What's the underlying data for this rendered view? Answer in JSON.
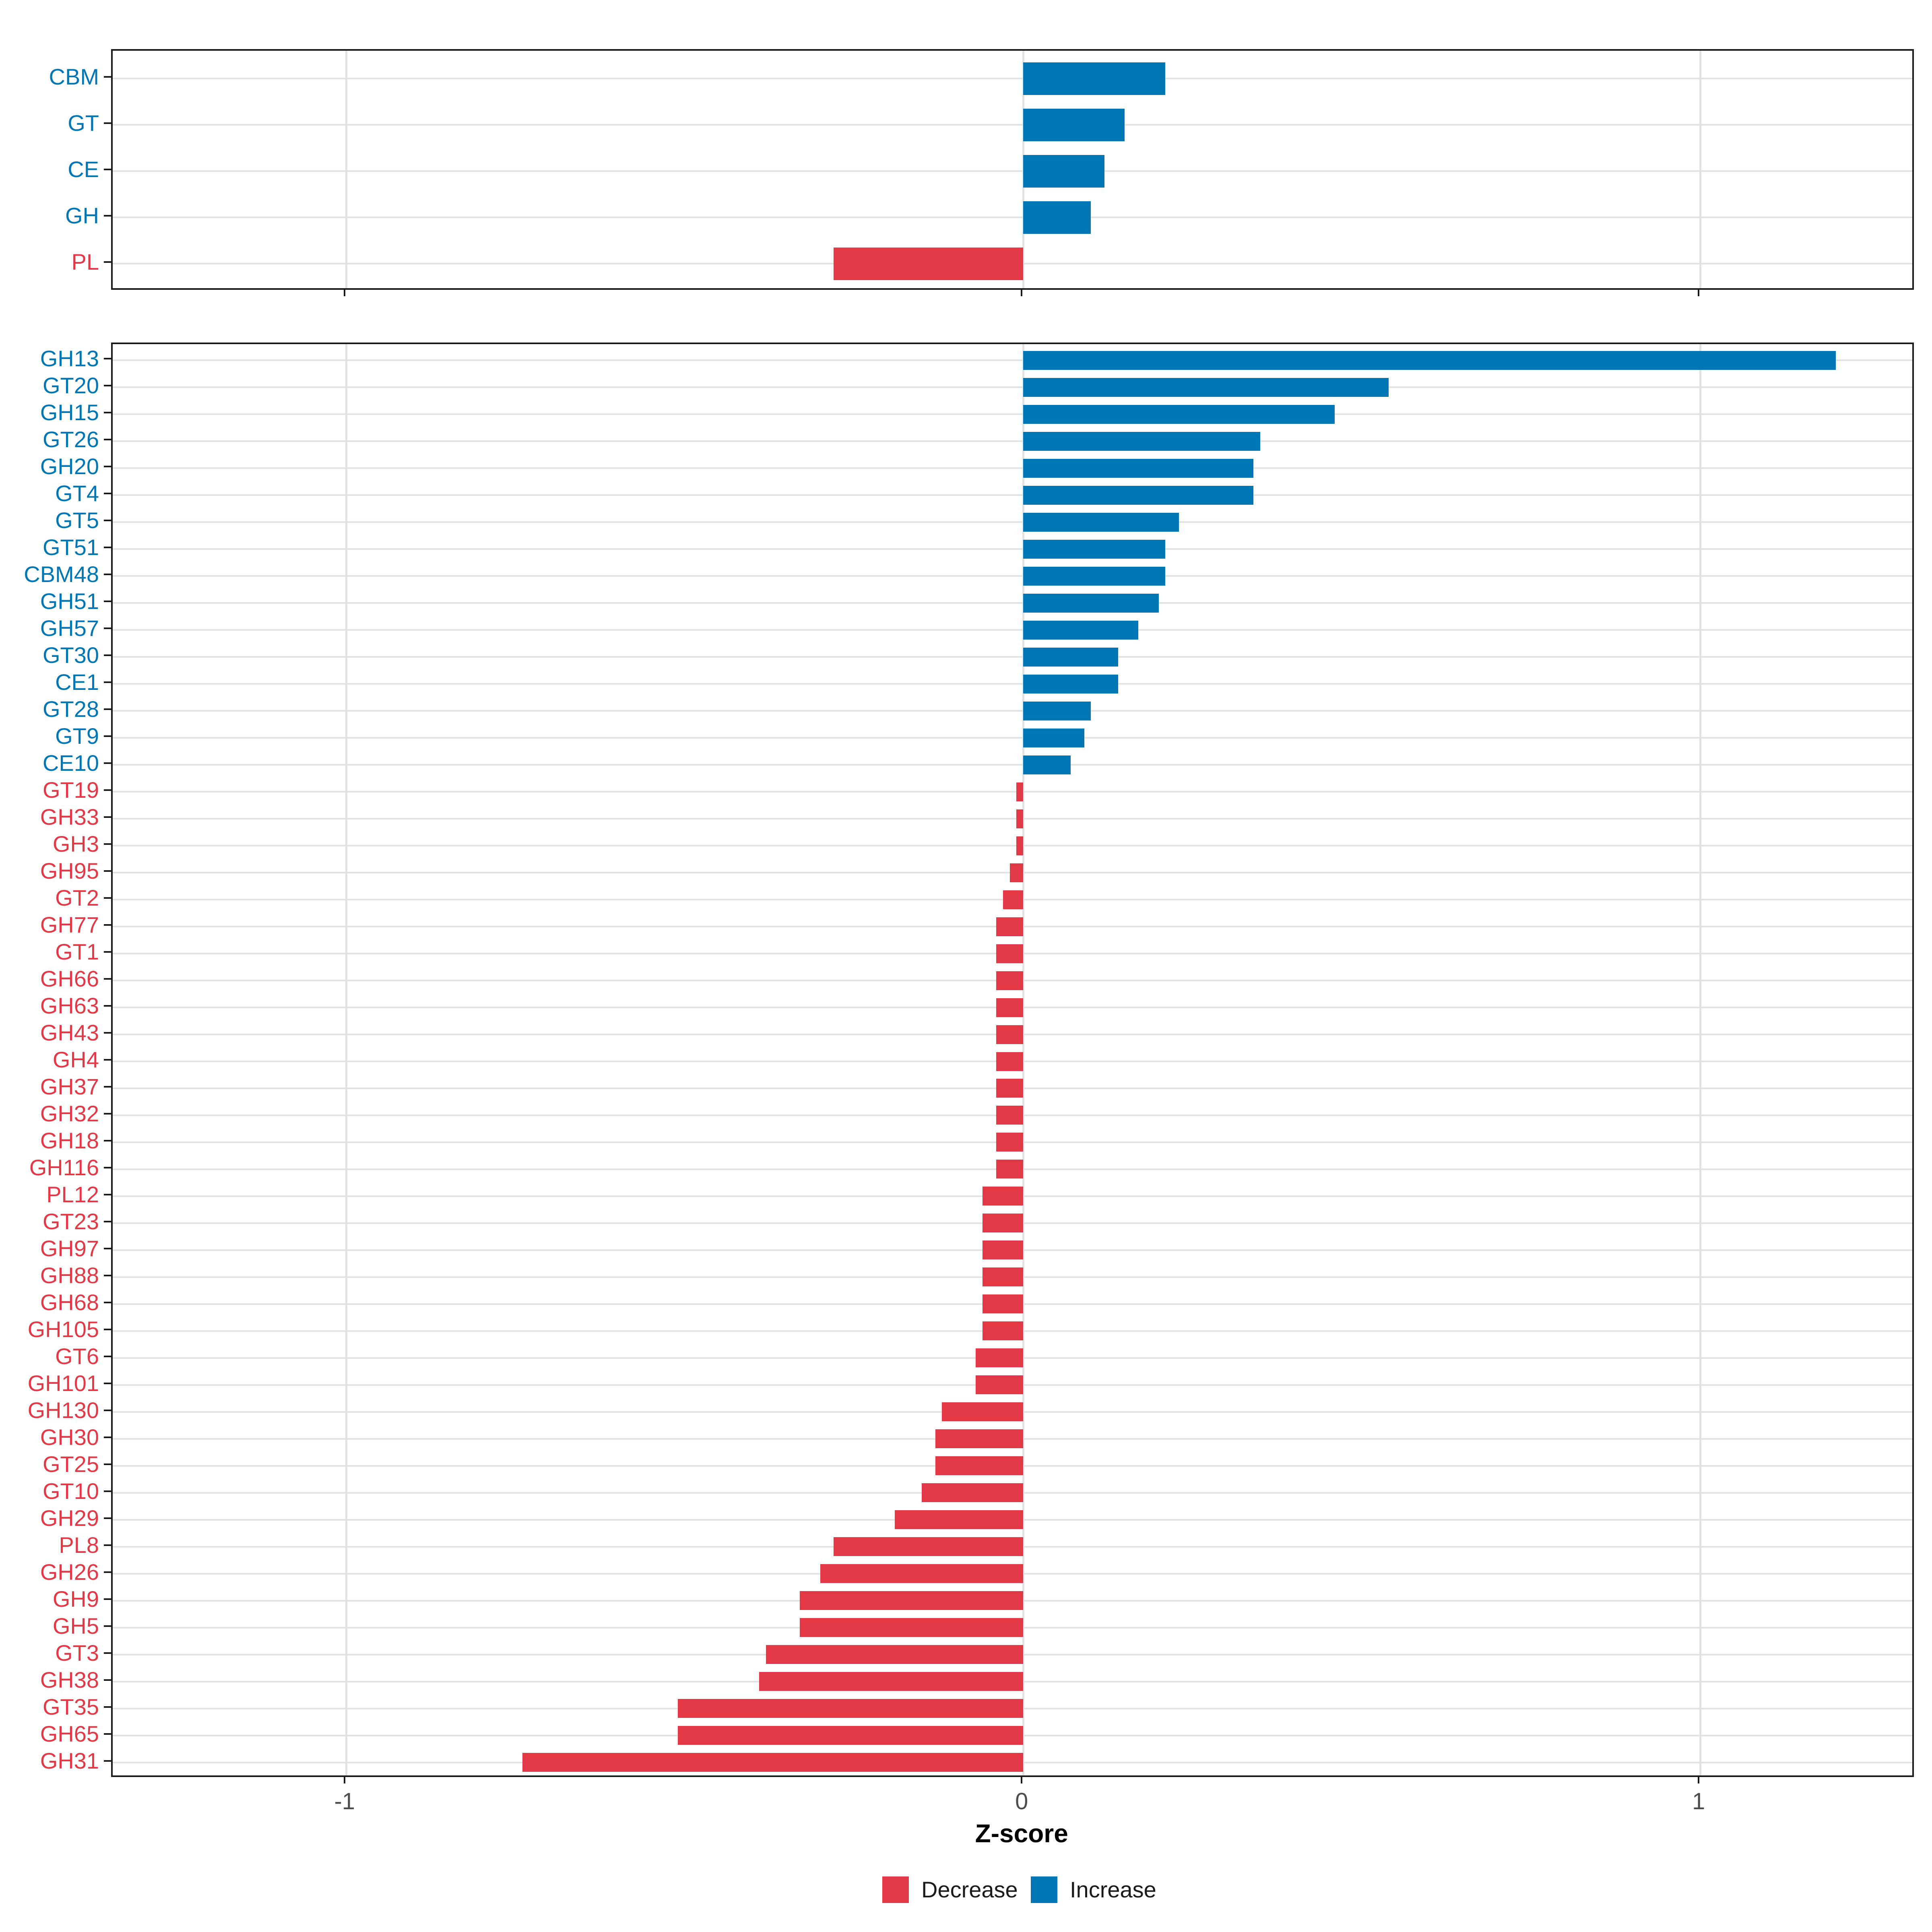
{
  "axis": {
    "xlabel": "Z-score",
    "tick_values": [
      -1,
      0,
      1
    ],
    "tick_labels": [
      "-1",
      "0",
      "1"
    ],
    "xlim": [
      -1.345,
      1.318
    ]
  },
  "legend": {
    "items": [
      {
        "label": "Decrease",
        "color": "#E33947"
      },
      {
        "label": "Increase",
        "color": "#0077B4"
      }
    ]
  },
  "colors": {
    "increase": "#0077B4",
    "decrease": "#E33947",
    "grid": "#E2E2E2",
    "panel_border": "#1A1A1A",
    "axis_text": "#4D4D4D"
  },
  "chart_data": [
    {
      "panel": "enzyme-classes",
      "type": "bar",
      "orientation": "horizontal",
      "xlabel": "Z-score",
      "categories": [
        "CBM",
        "GT",
        "CE",
        "GH",
        "PL"
      ],
      "values": [
        0.21,
        0.15,
        0.12,
        0.1,
        -0.28
      ]
    },
    {
      "panel": "enzyme-families",
      "type": "bar",
      "orientation": "horizontal",
      "xlabel": "Z-score",
      "categories": [
        "GH13",
        "GT20",
        "GH15",
        "GT26",
        "GH20",
        "GT4",
        "GT5",
        "GT51",
        "CBM48",
        "GH51",
        "GH57",
        "GT30",
        "CE1",
        "GT28",
        "GT9",
        "CE10",
        "GT19",
        "GH33",
        "GH3",
        "GH95",
        "GT2",
        "GH77",
        "GT1",
        "GH66",
        "GH63",
        "GH43",
        "GH4",
        "GH37",
        "GH32",
        "GH18",
        "GH116",
        "PL12",
        "GT23",
        "GH97",
        "GH88",
        "GH68",
        "GH105",
        "GT6",
        "GH101",
        "GH130",
        "GH30",
        "GT25",
        "GT10",
        "GH29",
        "PL8",
        "GH26",
        "GH9",
        "GH5",
        "GT3",
        "GH38",
        "GT35",
        "GH65",
        "GH31"
      ],
      "values": [
        1.2,
        0.54,
        0.46,
        0.35,
        0.34,
        0.34,
        0.23,
        0.21,
        0.21,
        0.2,
        0.17,
        0.14,
        0.14,
        0.1,
        0.09,
        0.07,
        -0.01,
        -0.01,
        -0.01,
        -0.02,
        -0.03,
        -0.04,
        -0.04,
        -0.04,
        -0.04,
        -0.04,
        -0.04,
        -0.04,
        -0.04,
        -0.04,
        -0.04,
        -0.06,
        -0.06,
        -0.06,
        -0.06,
        -0.06,
        -0.06,
        -0.07,
        -0.07,
        -0.12,
        -0.13,
        -0.13,
        -0.15,
        -0.19,
        -0.28,
        -0.3,
        -0.33,
        -0.33,
        -0.38,
        -0.39,
        -0.51,
        -0.51,
        -0.74
      ]
    }
  ]
}
